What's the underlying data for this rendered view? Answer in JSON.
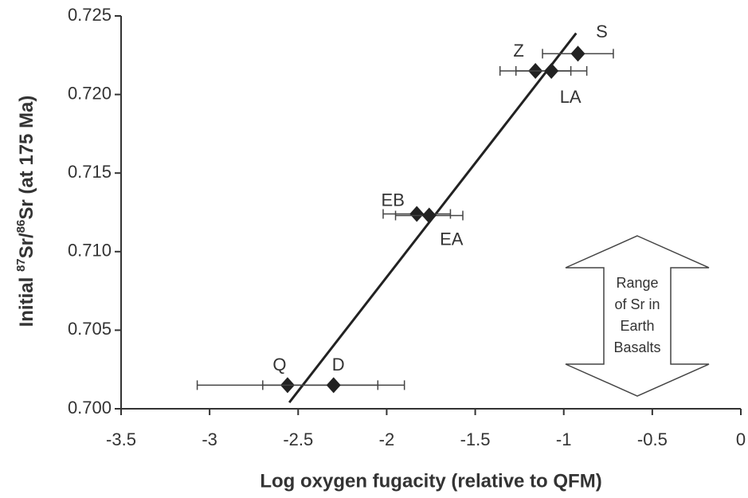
{
  "chart_data": {
    "type": "scatter",
    "xlabel": "Log oxygen fugacity (relative to QFM)",
    "ylabel_parts": [
      "Initial ",
      "87",
      "Sr/",
      "86",
      "Sr (at 175 Ma)"
    ],
    "labels": [
      "S",
      "Z",
      "LA",
      "EB",
      "EA",
      "Q",
      "D"
    ],
    "x": [
      -0.92,
      -1.16,
      -1.07,
      -1.83,
      -1.76,
      -2.56,
      -2.3
    ],
    "y": [
      0.7226,
      0.7215,
      0.7215,
      0.7124,
      0.7123,
      0.7015,
      0.7015
    ],
    "xerr": [
      0.2,
      0.2,
      0.2,
      0.19,
      0.19,
      0.51,
      0.4
    ],
    "color": "#222222",
    "fit_line": {
      "x": [
        -2.55,
        -0.93
      ],
      "y": [
        0.7004,
        0.7239
      ]
    },
    "annotation": [
      "Range",
      "of Sr in",
      "Earth",
      "Basalts"
    ],
    "xlim": [
      -3.5,
      0
    ],
    "ylim": [
      0.7,
      0.725
    ],
    "xticks": [
      -3.5,
      -3,
      -2.5,
      -2,
      -1.5,
      -1,
      -0.5,
      0
    ],
    "yticks": [
      {
        "value": 0.7,
        "label": "0.700"
      },
      0.705,
      {
        "value": 0.71,
        "label": "0.710"
      },
      0.715,
      {
        "value": 0.72,
        "label": "0.720"
      },
      0.725
    ],
    "grid": false
  }
}
